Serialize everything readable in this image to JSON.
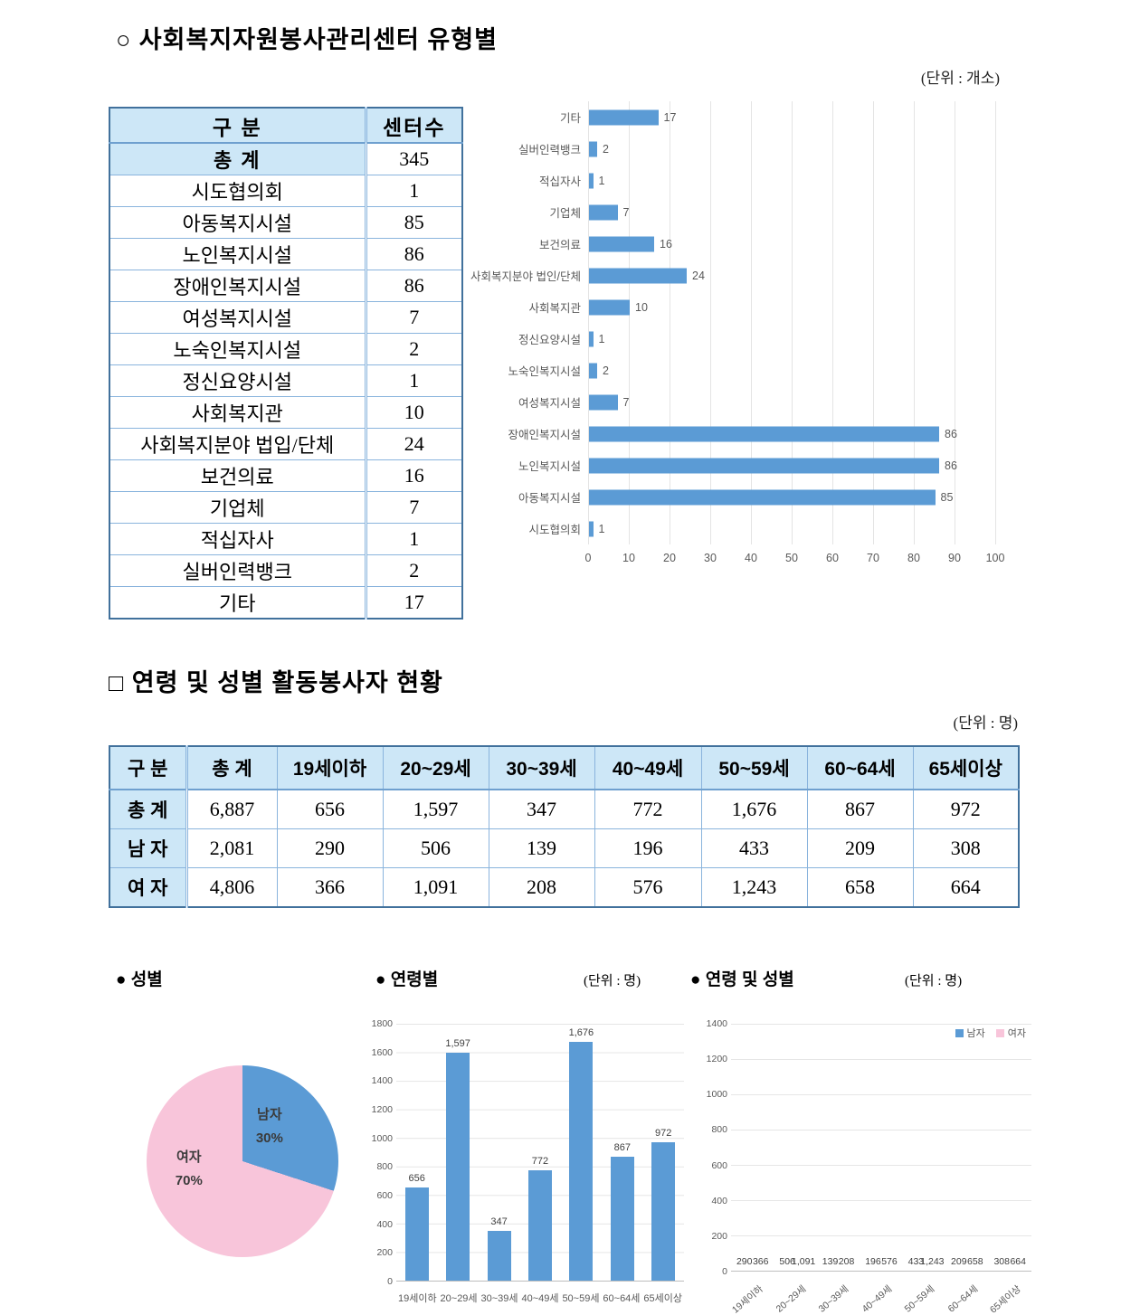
{
  "section1": {
    "title": "○ 사회복지자원봉사관리센터 유형별",
    "unit": "(단위 : 개소)"
  },
  "section2": {
    "title": "□ 연령 및 성별 활동봉사자 현황",
    "unit": "(단위 : 명)"
  },
  "charts_row": {
    "gender_label": "● 성별",
    "age_label": "● 연령별",
    "age_unit": "(단위 : 명)",
    "age_gender_label": "● 연령 및 성별",
    "age_gender_unit": "(단위 : 명)"
  },
  "table1": {
    "headers": [
      "구      분",
      "센터수"
    ],
    "rows": [
      {
        "label": "총      계",
        "value": "345",
        "total": true
      },
      {
        "label": "시도협의회",
        "value": "1"
      },
      {
        "label": "아동복지시설",
        "value": "85"
      },
      {
        "label": "노인복지시설",
        "value": "86"
      },
      {
        "label": "장애인복지시설",
        "value": "86"
      },
      {
        "label": "여성복지시설",
        "value": "7"
      },
      {
        "label": "노숙인복지시설",
        "value": "2"
      },
      {
        "label": "정신요양시설",
        "value": "1"
      },
      {
        "label": "사회복지관",
        "value": "10"
      },
      {
        "label": "사회복지분야 법입/단체",
        "value": "24"
      },
      {
        "label": "보건의료",
        "value": "16"
      },
      {
        "label": "기업체",
        "value": "7"
      },
      {
        "label": "적십자사",
        "value": "1"
      },
      {
        "label": "실버인력뱅크",
        "value": "2"
      },
      {
        "label": "기타",
        "value": "17"
      }
    ]
  },
  "table2": {
    "headers": [
      "구 분",
      "총 계",
      "19세이하",
      "20~29세",
      "30~39세",
      "40~49세",
      "50~59세",
      "60~64세",
      "65세이상"
    ],
    "rows": [
      {
        "label": "총 계",
        "values": [
          "6,887",
          "656",
          "1,597",
          "347",
          "772",
          "1,676",
          "867",
          "972"
        ]
      },
      {
        "label": "남 자",
        "values": [
          "2,081",
          "290",
          "506",
          "139",
          "196",
          "433",
          "209",
          "308"
        ]
      },
      {
        "label": "여 자",
        "values": [
          "4,806",
          "366",
          "1,091",
          "208",
          "576",
          "1,243",
          "658",
          "664"
        ]
      }
    ]
  },
  "colors": {
    "bar_blue": "#5B9BD5",
    "bar_pink": "#F8C5DA",
    "grid": "#e4e4e4",
    "chart_text": "#595959"
  },
  "chart_data": [
    {
      "id": "center-types",
      "type": "bar",
      "orientation": "horizontal",
      "categories": [
        "기타",
        "실버인력뱅크",
        "적십자사",
        "기업체",
        "보건의료",
        "사회복지분야 법인/단체",
        "사회복지관",
        "정신요양시설",
        "노숙인복지시설",
        "여성복지시설",
        "장애인복지시설",
        "노인복지시설",
        "아동복지시설",
        "시도협의회"
      ],
      "values": [
        17,
        2,
        1,
        7,
        16,
        24,
        10,
        1,
        2,
        7,
        86,
        86,
        85,
        1
      ],
      "value_labels": [
        "17",
        "2",
        "1",
        "7",
        "16",
        "24",
        "10",
        "1",
        "2",
        "7",
        "86",
        "86",
        "85",
        "1"
      ],
      "xlim": [
        0,
        100
      ],
      "xticks": [
        0,
        10,
        20,
        30,
        40,
        50,
        60,
        70,
        80,
        90,
        100
      ],
      "grid": true,
      "bar_color": "#5B9BD5"
    },
    {
      "id": "gender-pie",
      "type": "pie",
      "labels": [
        "남자",
        "여자"
      ],
      "values": [
        30,
        70
      ],
      "percent_labels": [
        "30%",
        "70%"
      ],
      "colors": [
        "#5B9BD5",
        "#F8C5DA"
      ]
    },
    {
      "id": "age-bar",
      "type": "bar",
      "orientation": "vertical",
      "categories": [
        "19세이하",
        "20~29세",
        "30~39세",
        "40~49세",
        "50~59세",
        "60~64세",
        "65세이상"
      ],
      "values": [
        656,
        1597,
        347,
        772,
        1676,
        867,
        972
      ],
      "value_labels": [
        "656",
        "1,597",
        "347",
        "772",
        "1,676",
        "867",
        "972"
      ],
      "ylim": [
        0,
        1800
      ],
      "ytick_step": 200,
      "grid": true,
      "bar_color": "#5B9BD5"
    },
    {
      "id": "age-gender-bar",
      "type": "bar",
      "orientation": "vertical",
      "categories": [
        "19세이하",
        "20~29세",
        "30~39세",
        "40~49세",
        "50~59세",
        "60~64세",
        "65세이상"
      ],
      "series": [
        {
          "name": "남자",
          "color": "#5B9BD5",
          "values": [
            290,
            506,
            139,
            196,
            433,
            209,
            308
          ],
          "value_labels": [
            "290",
            "506",
            "139",
            "196",
            "433",
            "209",
            "308"
          ]
        },
        {
          "name": "여자",
          "color": "#F8C5DA",
          "values": [
            366,
            1091,
            208,
            576,
            1243,
            658,
            664
          ],
          "value_labels": [
            "366",
            "1,091",
            "208",
            "576",
            "1,243",
            "658",
            "664"
          ]
        }
      ],
      "ylim": [
        0,
        1400
      ],
      "ytick_step": 200,
      "grid": true,
      "legend_position": "top-right"
    }
  ]
}
